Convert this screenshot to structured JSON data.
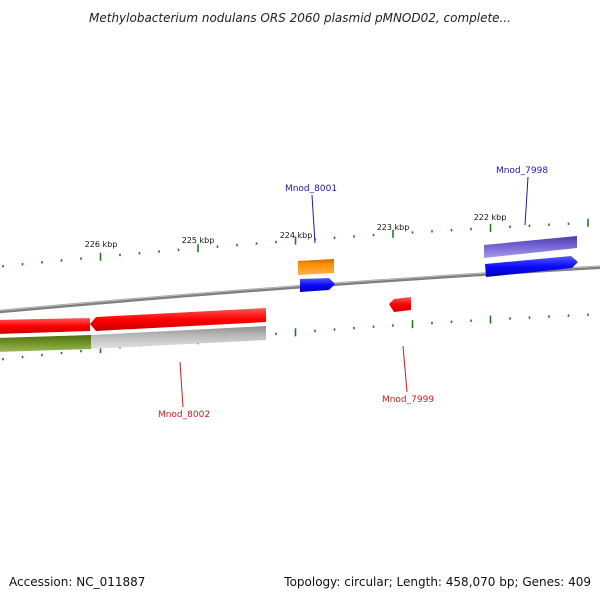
{
  "title": "Methylobacterium nodulans ORS 2060 plasmid pMNOD02, complete...",
  "footer": {
    "accession": "Accession: NC_011887",
    "summary": "Topology: circular; Length: 458,070 bp; Genes: 409"
  },
  "scale_labels": [
    "226 kbp",
    "225 kbp",
    "224 kbp",
    "223 kbp",
    "222 kbp"
  ],
  "gene_labels": {
    "forward": [
      "Mnod_8001",
      "Mnod_7998"
    ],
    "reverse": [
      "Mnod_8002",
      "Mnod_7999"
    ]
  },
  "colors": {
    "forward_label": "#1a1aa8",
    "reverse_label": "#c81e1e",
    "tick": "#1f7a1f",
    "cds_forward": "#0a0aff",
    "cds_reverse": "#ff0000",
    "feature_orange": "#ff8c00",
    "feature_purple": "#6a5acd",
    "feature_green": "#6b8e23",
    "feature_grey": "#b8b8b8",
    "backbone": "#7f7f7f"
  }
}
